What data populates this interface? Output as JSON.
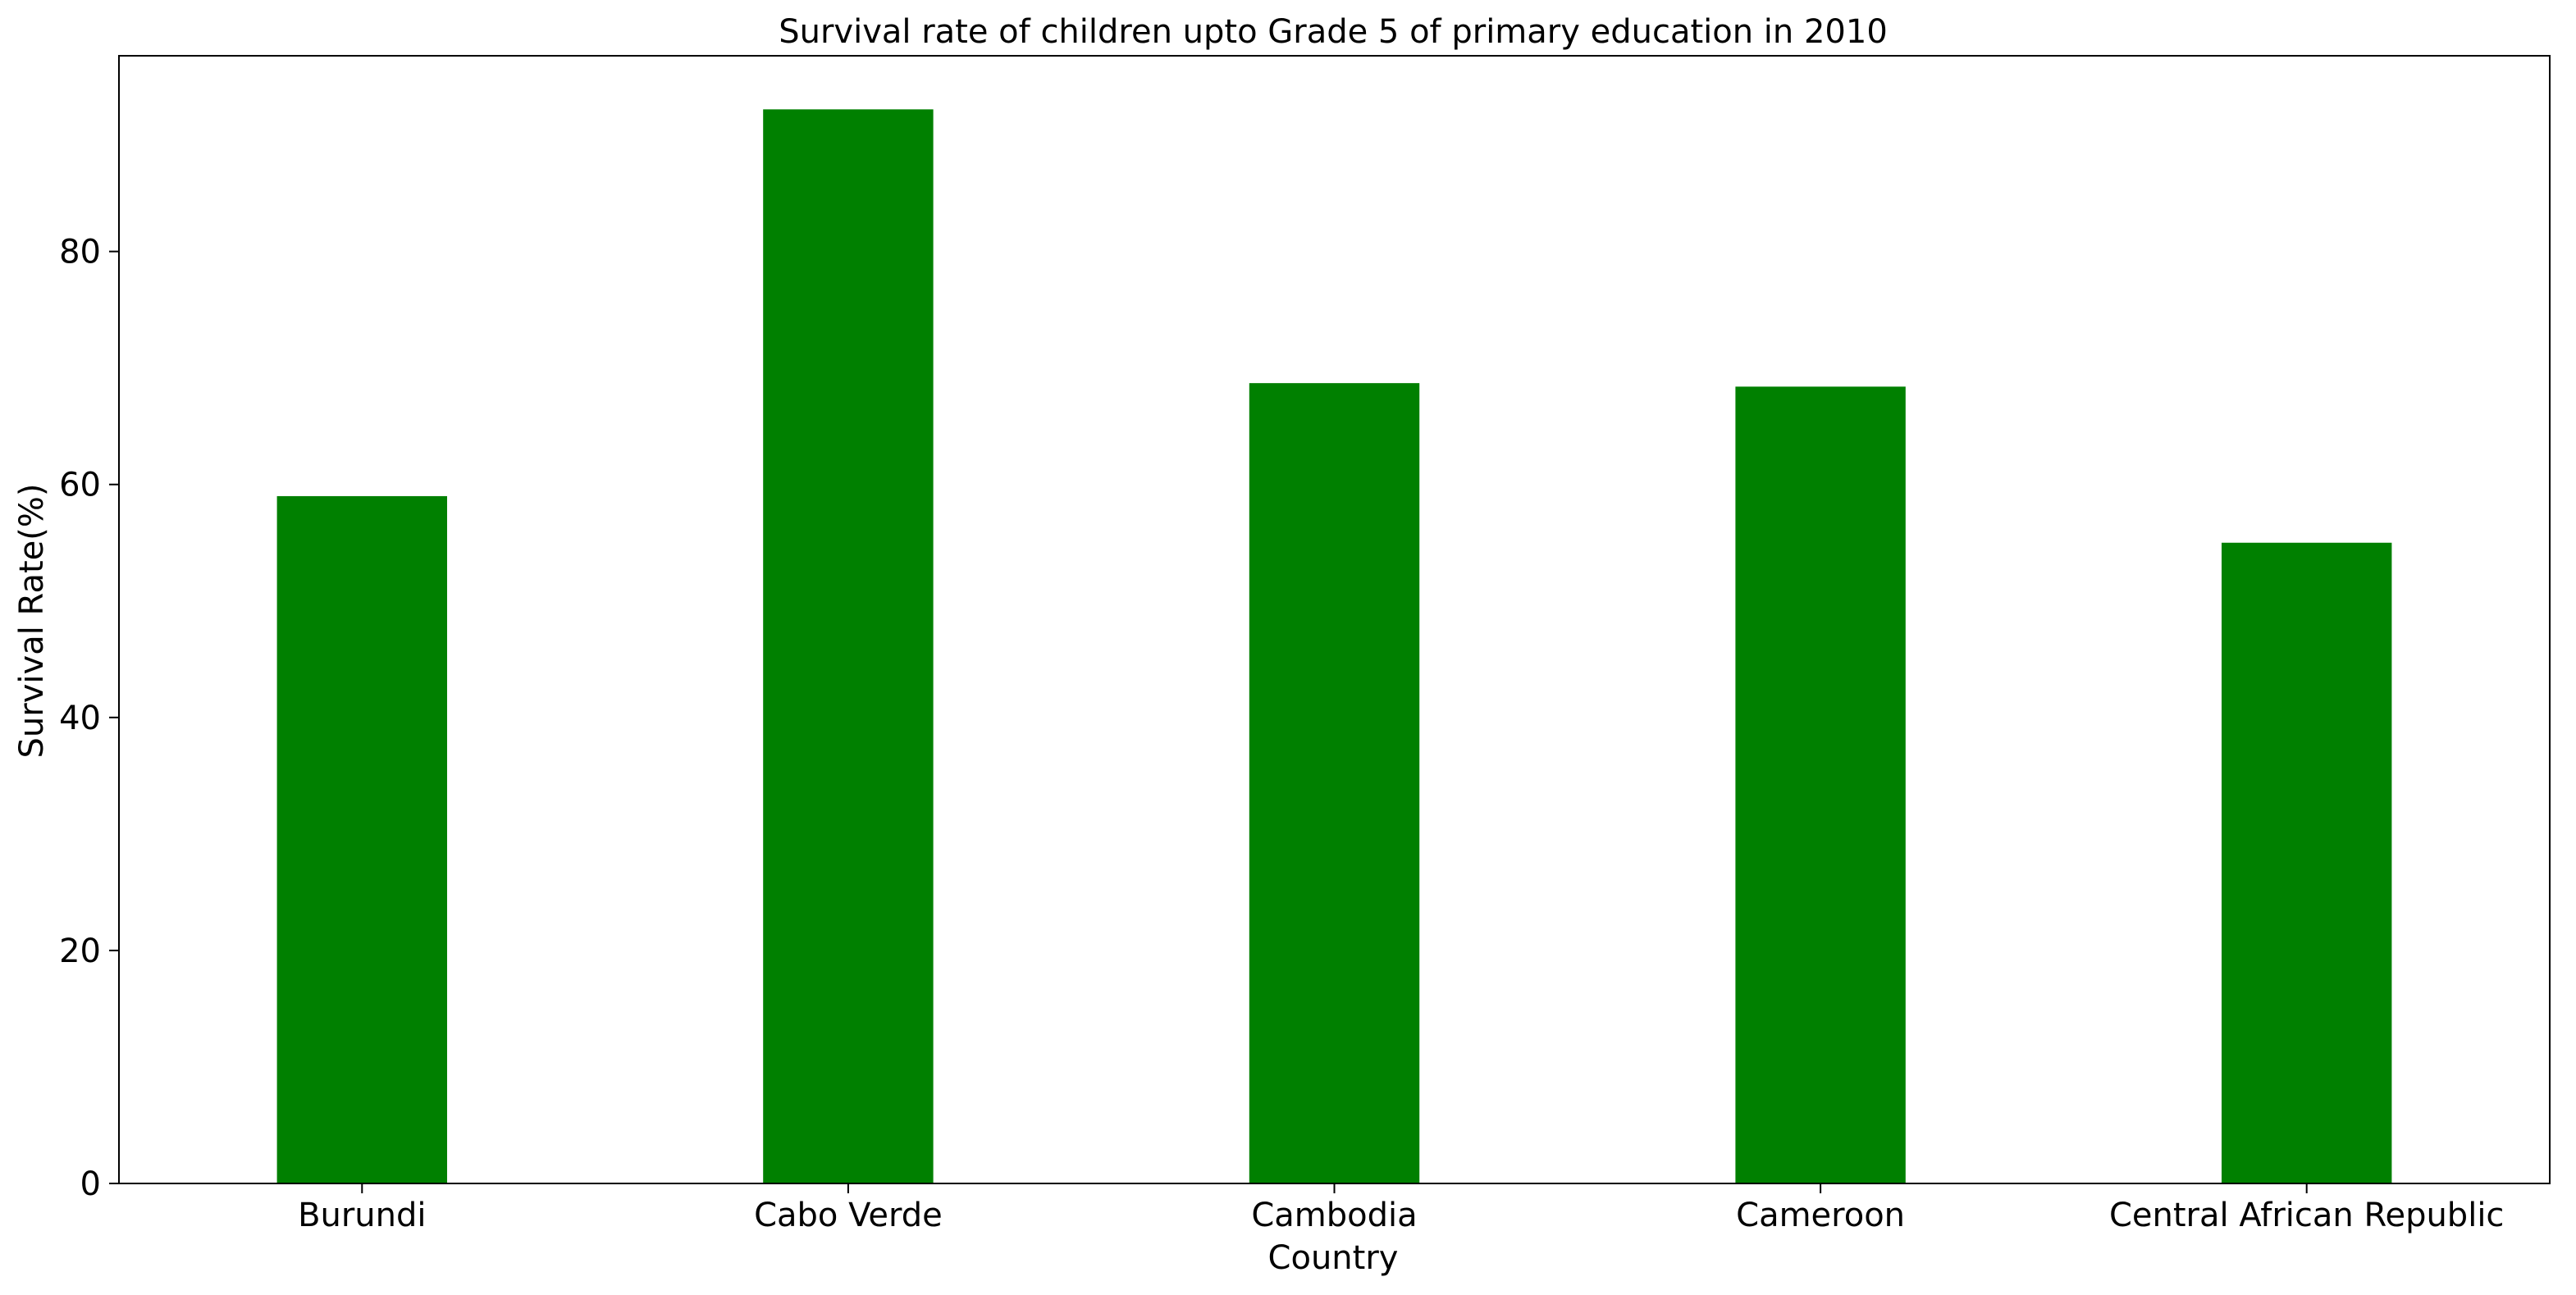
{
  "chart_data": {
    "type": "bar",
    "title": "Survival rate of children upto Grade 5 of primary education in 2010",
    "xlabel": "Country",
    "ylabel": "Survival Rate(%)",
    "categories": [
      "Burundi",
      "Cabo Verde",
      "Cambodia",
      "Cameroon",
      "Central African Republic"
    ],
    "values": [
      59,
      92.2,
      68.7,
      68.4,
      55
    ],
    "ylim": [
      0,
      96.8
    ],
    "yticks": [
      0,
      20,
      40,
      60,
      80
    ],
    "bar_color": "#008000",
    "grid": false,
    "legend": "none"
  }
}
